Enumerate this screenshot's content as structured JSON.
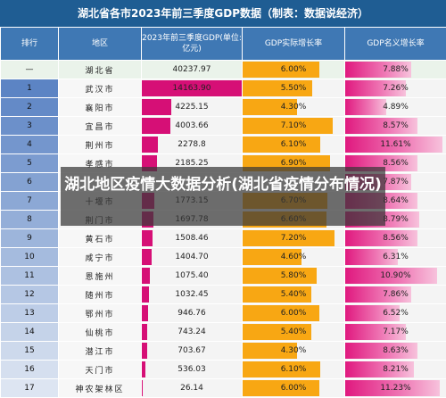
{
  "title": "湖北省各市2023年前三季度GDP数据（制表：数据说经济）",
  "overlay_text": "湖北地区疫情大数据分析(湖北省疫情分布情况)",
  "colors": {
    "header_bg": "#1f5d93",
    "column_header_bg": "#3f78b4",
    "gdp_bar": "#d60f76",
    "growth_bar": "#f8a713",
    "nominal_bar": "#e0197f"
  },
  "chart_data": {
    "type": "table",
    "columns": [
      "排行",
      "地区",
      "2023年前三季度GDP(单位:亿元)",
      "GDP实际增长率",
      "GDP名义增长率"
    ],
    "summary": {
      "rank": "—",
      "region": "湖北省",
      "gdp": "40237.97",
      "real_growth": "6.00%",
      "nominal_growth": "7.88%"
    },
    "rows": [
      {
        "rank": "1",
        "region": "武汉市",
        "gdp": "14163.90",
        "real_growth": "5.50%",
        "nominal_growth": "7.26%"
      },
      {
        "rank": "2",
        "region": "襄阳市",
        "gdp": "4225.15",
        "real_growth": "4.30%",
        "nominal_growth": "4.89%"
      },
      {
        "rank": "3",
        "region": "宜昌市",
        "gdp": "4003.66",
        "real_growth": "7.10%",
        "nominal_growth": "8.57%"
      },
      {
        "rank": "4",
        "region": "荆州市",
        "gdp": "2278.8",
        "real_growth": "6.10%",
        "nominal_growth": "11.61%"
      },
      {
        "rank": "5",
        "region": "孝感市",
        "gdp": "2185.25",
        "real_growth": "6.90%",
        "nominal_growth": "8.56%"
      },
      {
        "rank": "6",
        "region": "",
        "gdp": "",
        "real_growth": "",
        "nominal_growth": "7.87%"
      },
      {
        "rank": "7",
        "region": "十堰市",
        "gdp": "1773.15",
        "real_growth": "6.70%",
        "nominal_growth": "8.64%"
      },
      {
        "rank": "8",
        "region": "荆门市",
        "gdp": "1697.78",
        "real_growth": "6.60%",
        "nominal_growth": "8.79%"
      },
      {
        "rank": "9",
        "region": "黄石市",
        "gdp": "1508.46",
        "real_growth": "7.20%",
        "nominal_growth": "8.56%"
      },
      {
        "rank": "10",
        "region": "咸宁市",
        "gdp": "1404.70",
        "real_growth": "4.60%",
        "nominal_growth": "6.31%"
      },
      {
        "rank": "11",
        "region": "恩施州",
        "gdp": "1075.40",
        "real_growth": "5.80%",
        "nominal_growth": "10.90%"
      },
      {
        "rank": "12",
        "region": "随州市",
        "gdp": "1032.45",
        "real_growth": "5.40%",
        "nominal_growth": "7.86%"
      },
      {
        "rank": "13",
        "region": "鄂州市",
        "gdp": "946.76",
        "real_growth": "6.00%",
        "nominal_growth": "6.52%"
      },
      {
        "rank": "14",
        "region": "仙桃市",
        "gdp": "743.24",
        "real_growth": "5.40%",
        "nominal_growth": "7.17%"
      },
      {
        "rank": "15",
        "region": "潜江市",
        "gdp": "703.67",
        "real_growth": "4.30%",
        "nominal_growth": "8.63%"
      },
      {
        "rank": "16",
        "region": "天门市",
        "gdp": "536.03",
        "real_growth": "6.10%",
        "nominal_growth": "8.21%"
      },
      {
        "rank": "17",
        "region": "神农架林区",
        "gdp": "26.14",
        "real_growth": "6.00%",
        "nominal_growth": "11.23%"
      }
    ],
    "gdp_bar_max": 14163.9,
    "growth_bar_max": 8.0,
    "nominal_bar_max": 12.0
  }
}
